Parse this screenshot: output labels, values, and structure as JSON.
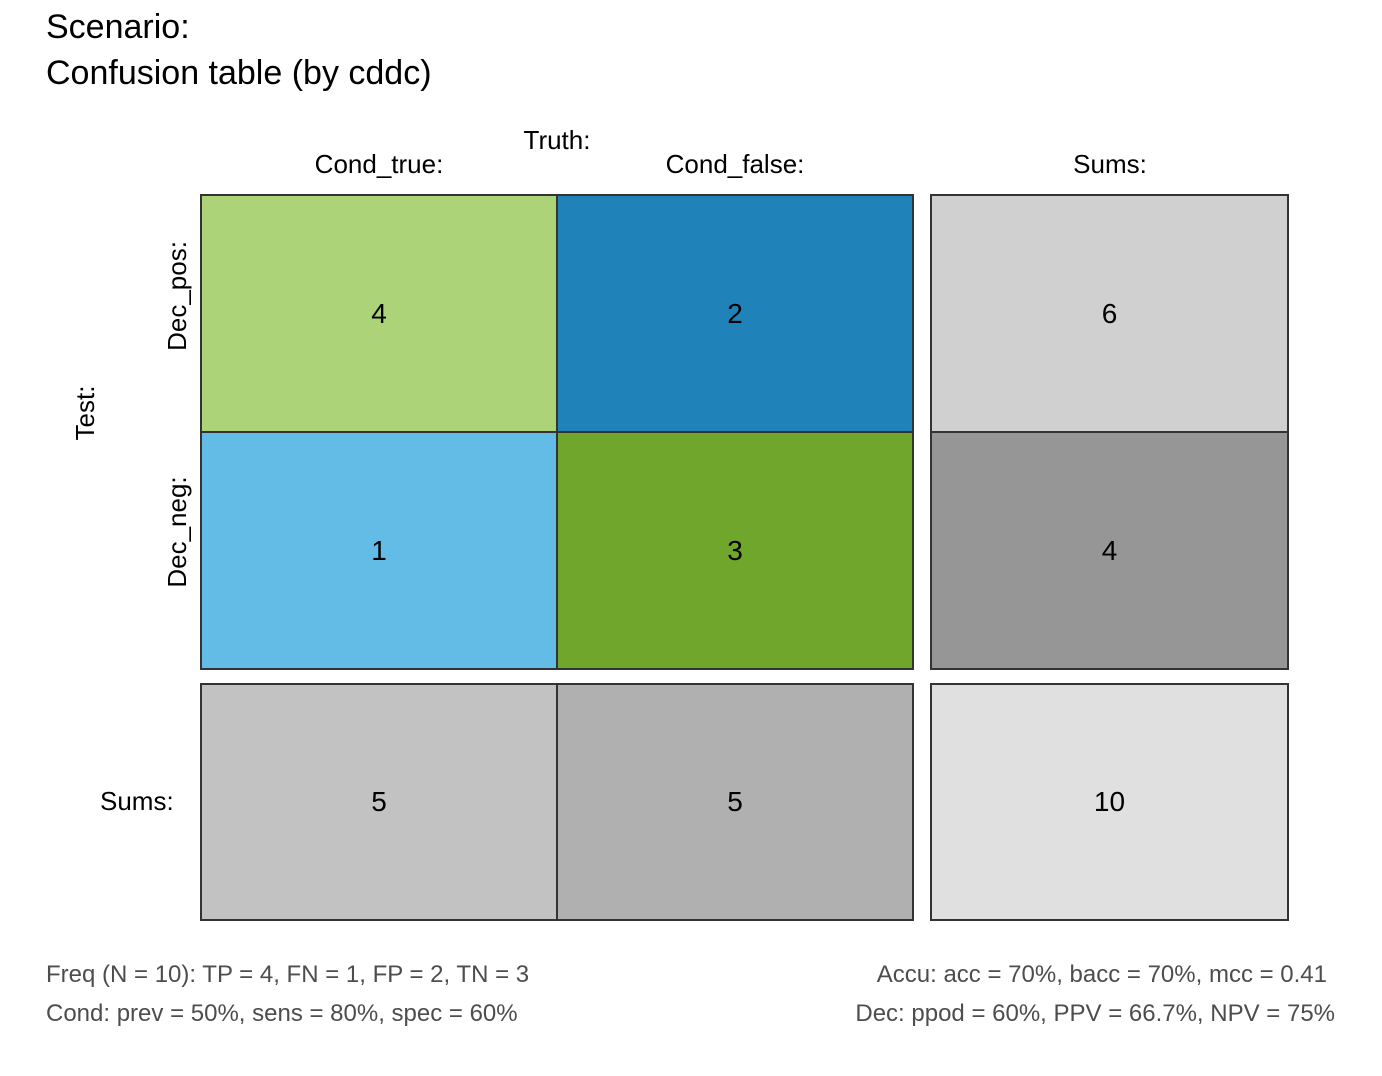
{
  "title": {
    "line1": "Scenario:",
    "line2": "Confusion table (by cddc)"
  },
  "labels": {
    "truth": "Truth:",
    "test": "Test:",
    "col_true": "Cond_true:",
    "col_false": "Cond_false:",
    "col_sums": "Sums:",
    "row_pos": "Dec_pos:",
    "row_neg": "Dec_neg:",
    "row_sums": "Sums:"
  },
  "cells": {
    "tp": "4",
    "fp": "2",
    "fn": "1",
    "tn": "3",
    "dec_pos_sum": "6",
    "dec_neg_sum": "4",
    "cond_true_sum": "5",
    "cond_false_sum": "5",
    "total": "10"
  },
  "colors": {
    "tp": "#acd377",
    "fp": "#1f83ba",
    "fn": "#62bce6",
    "tn": "#70a62c",
    "dec_pos_sum": "#d0d0d0",
    "dec_neg_sum": "#969696",
    "cond_true_sum": "#c2c2c2",
    "cond_false_sum": "#b0b0b0",
    "total": "#e0e0e0"
  },
  "footer": {
    "freq": "Freq (N = 10):  TP = 4, FN = 1, FP = 2, TN = 3",
    "cond": "Cond:  prev = 50%, sens = 80%, spec = 60%",
    "accu": "Accu:  acc = 70%, bacc = 70%, mcc = 0.41",
    "dec": "Dec:  ppod = 60%, PPV = 66.7%, NPV = 75%"
  }
}
